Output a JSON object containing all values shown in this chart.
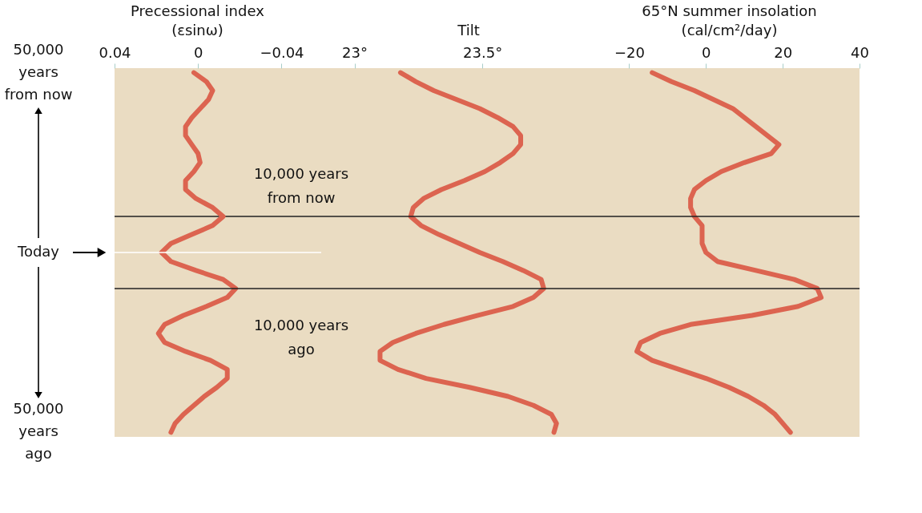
{
  "chart_data": [
    {
      "type": "line",
      "orientation": "horizontal",
      "xlabel": "Precessional index (εsinω)",
      "categories": [
        "50,000 years from now",
        null,
        null,
        null,
        null,
        null,
        null,
        null,
        null,
        null,
        null,
        null,
        null,
        null,
        null,
        null,
        null,
        null,
        null,
        null,
        "Today",
        null,
        null,
        null,
        null,
        null,
        null,
        null,
        null,
        null,
        null,
        null,
        null,
        null,
        null,
        null,
        null,
        null,
        null,
        null,
        "50,000 years ago"
      ],
      "series": [
        {
          "color": "#dc6450",
          "values": [
            0.002,
            -0.004,
            -0.007,
            -0.005,
            -0.001,
            0.003,
            0.006,
            0.006,
            0.003,
            0.0,
            -0.001,
            0.002,
            0.006,
            0.006,
            0.001,
            -0.007,
            -0.012,
            -0.007,
            0.003,
            0.013,
            0.0175,
            0.013,
            0.001,
            -0.012,
            -0.018,
            -0.014,
            -0.004,
            0.007,
            0.016,
            0.019,
            0.016,
            0.006,
            -0.006,
            -0.014,
            -0.014,
            -0.009,
            -0.003,
            0.002,
            0.007,
            0.011,
            0.013
          ]
        }
      ],
      "xlim": [
        0.04,
        -0.059
      ],
      "xticks": [
        0.04,
        0,
        {
          "value": -0.04,
          "label": "−0.04"
        }
      ],
      "ref_lines": [
        {
          "axis": "y",
          "value": "Today",
          "color": "#ffffff"
        }
      ]
    },
    {
      "type": "line",
      "orientation": "horizontal",
      "xlabel": "Tilt",
      "tick_labels": "x",
      "categories": [
        null,
        null,
        null,
        null,
        null,
        null,
        null,
        null,
        null,
        null,
        null,
        null,
        null,
        null,
        null,
        null,
        null,
        null,
        null,
        null,
        null,
        null,
        null,
        null,
        null,
        null,
        null,
        null,
        null,
        null,
        null,
        null,
        null,
        null,
        null,
        null,
        null,
        null,
        null,
        null,
        null
      ],
      "series": [
        {
          "color": "#dc6450",
          "values": [
            23.18,
            23.24,
            23.31,
            23.4,
            23.49,
            23.56,
            23.62,
            23.65,
            23.65,
            23.62,
            23.57,
            23.51,
            23.43,
            23.34,
            23.27,
            23.23,
            23.22,
            23.26,
            23.33,
            23.41,
            23.49,
            23.58,
            23.66,
            23.73,
            23.74,
            23.7,
            23.62,
            23.48,
            23.35,
            23.24,
            23.15,
            23.1,
            23.1,
            23.17,
            23.28,
            23.45,
            23.6,
            23.7,
            23.77,
            23.79,
            23.78
          ]
        }
      ],
      "xlim": [
        22.87,
        23.96
      ],
      "xticks": [
        {
          "value": 23,
          "label": "23°"
        },
        {
          "value": 23.5,
          "label": "23.5°"
        }
      ],
      "annotations": [
        "10,000 years from now",
        "10,000 years ago"
      ]
    },
    {
      "type": "line",
      "orientation": "horizontal",
      "xlabel": "65°N summer insolation (cal/cm²/day)",
      "tick_labels": "x",
      "categories": [
        null,
        null,
        null,
        null,
        null,
        null,
        null,
        null,
        null,
        null,
        null,
        null,
        null,
        null,
        null,
        null,
        null,
        null,
        null,
        null,
        null,
        null,
        null,
        null,
        null,
        null,
        null,
        null,
        null,
        null,
        null,
        null,
        null,
        null,
        null,
        null,
        null,
        null,
        null,
        null,
        null
      ],
      "series": [
        {
          "color": "#dc6450",
          "values": [
            -14,
            -9,
            -3,
            2,
            7,
            10,
            13,
            16,
            19,
            17,
            10,
            4,
            0,
            -3,
            -4,
            -4,
            -3,
            -1,
            -1,
            -1,
            0,
            3,
            13,
            23,
            29,
            30,
            24,
            12,
            -4,
            -12,
            -17,
            -18,
            -14,
            -7,
            0,
            6,
            11,
            15,
            18,
            20,
            22
          ]
        }
      ],
      "xlim": [
        -27.6,
        40
      ],
      "xticks": [
        {
          "value": -20,
          "label": "−20"
        },
        0,
        20,
        40
      ]
    }
  ]
}
